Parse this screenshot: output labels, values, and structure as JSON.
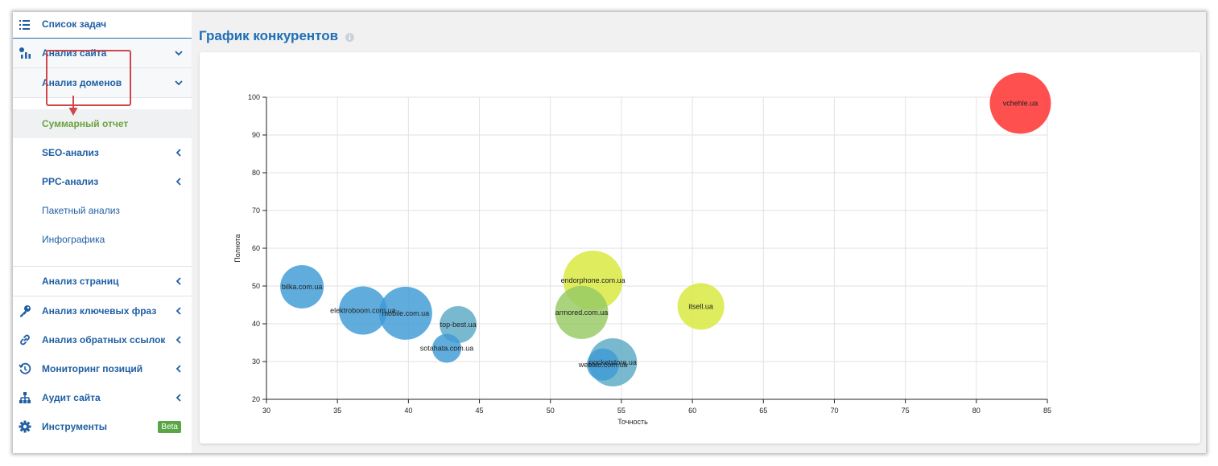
{
  "sidebar": {
    "task_list": "Список задач",
    "site_analysis": "Анализ сайта",
    "domain_analysis": "Анализ доменов",
    "summary_report": "Суммарный отчет",
    "seo_analysis": "SEO-анализ",
    "ppc_analysis": "PPC-анализ",
    "batch_analysis": "Пакетный анализ",
    "infographics": "Инфографика",
    "page_analysis": "Анализ страниц",
    "keyword_analysis": "Анализ ключевых фраз",
    "backlink_analysis": "Анализ обратных ссылок",
    "position_monitoring": "Мониторинг позиций",
    "site_audit": "Аудит сайта",
    "tools": "Инструменты",
    "tools_badge": "Beta"
  },
  "header": {
    "title": "График конкурентов"
  },
  "colors": {
    "accent": "#1f6fb6",
    "active_green": "#6ba33e",
    "annotation_red": "#d0474b"
  },
  "chart_data": {
    "type": "scatter",
    "xlabel": "Точность",
    "ylabel": "Полнота",
    "xlim": [
      30,
      85
    ],
    "ylim": [
      20,
      100
    ],
    "xticks": [
      30,
      35,
      40,
      45,
      50,
      55,
      60,
      65,
      70,
      75,
      80,
      85
    ],
    "yticks": [
      20,
      30,
      40,
      50,
      60,
      70,
      80,
      90,
      100
    ],
    "grid": true,
    "points": [
      {
        "label": "bilka.com.ua",
        "x": 32.5,
        "y": 49.8,
        "size": 27,
        "color": "#3d9bd6"
      },
      {
        "label": "elektroboom.com.ua",
        "x": 36.8,
        "y": 43.5,
        "size": 30,
        "color": "#3d9bd6"
      },
      {
        "label": "mobile.com.ua",
        "x": 39.8,
        "y": 42.8,
        "size": 33,
        "color": "#3d9bd6"
      },
      {
        "label": "top-best.ua",
        "x": 43.5,
        "y": 39.8,
        "size": 23,
        "color": "#5aaac4"
      },
      {
        "label": "sotahata.com.ua",
        "x": 42.7,
        "y": 33.5,
        "size": 18,
        "color": "#3d9bd6"
      },
      {
        "label": "endorphone.com.ua",
        "x": 53.0,
        "y": 51.5,
        "size": 37,
        "color": "#d7e83a"
      },
      {
        "label": "armored.com.ua",
        "x": 52.2,
        "y": 43.0,
        "size": 33,
        "color": "#96c963"
      },
      {
        "label": "pocketstore.ua",
        "x": 54.4,
        "y": 29.8,
        "size": 30,
        "color": "#5aaac4"
      },
      {
        "label": "webalo.com.ua",
        "x": 53.7,
        "y": 29.2,
        "size": 20,
        "color": "#3d9bd6"
      },
      {
        "label": "itsell.ua",
        "x": 60.6,
        "y": 44.6,
        "size": 29,
        "color": "#d7e83a"
      },
      {
        "label": "vchehle.ua",
        "x": 83.1,
        "y": 98.4,
        "size": 38,
        "color": "#ff2a2a"
      }
    ]
  }
}
